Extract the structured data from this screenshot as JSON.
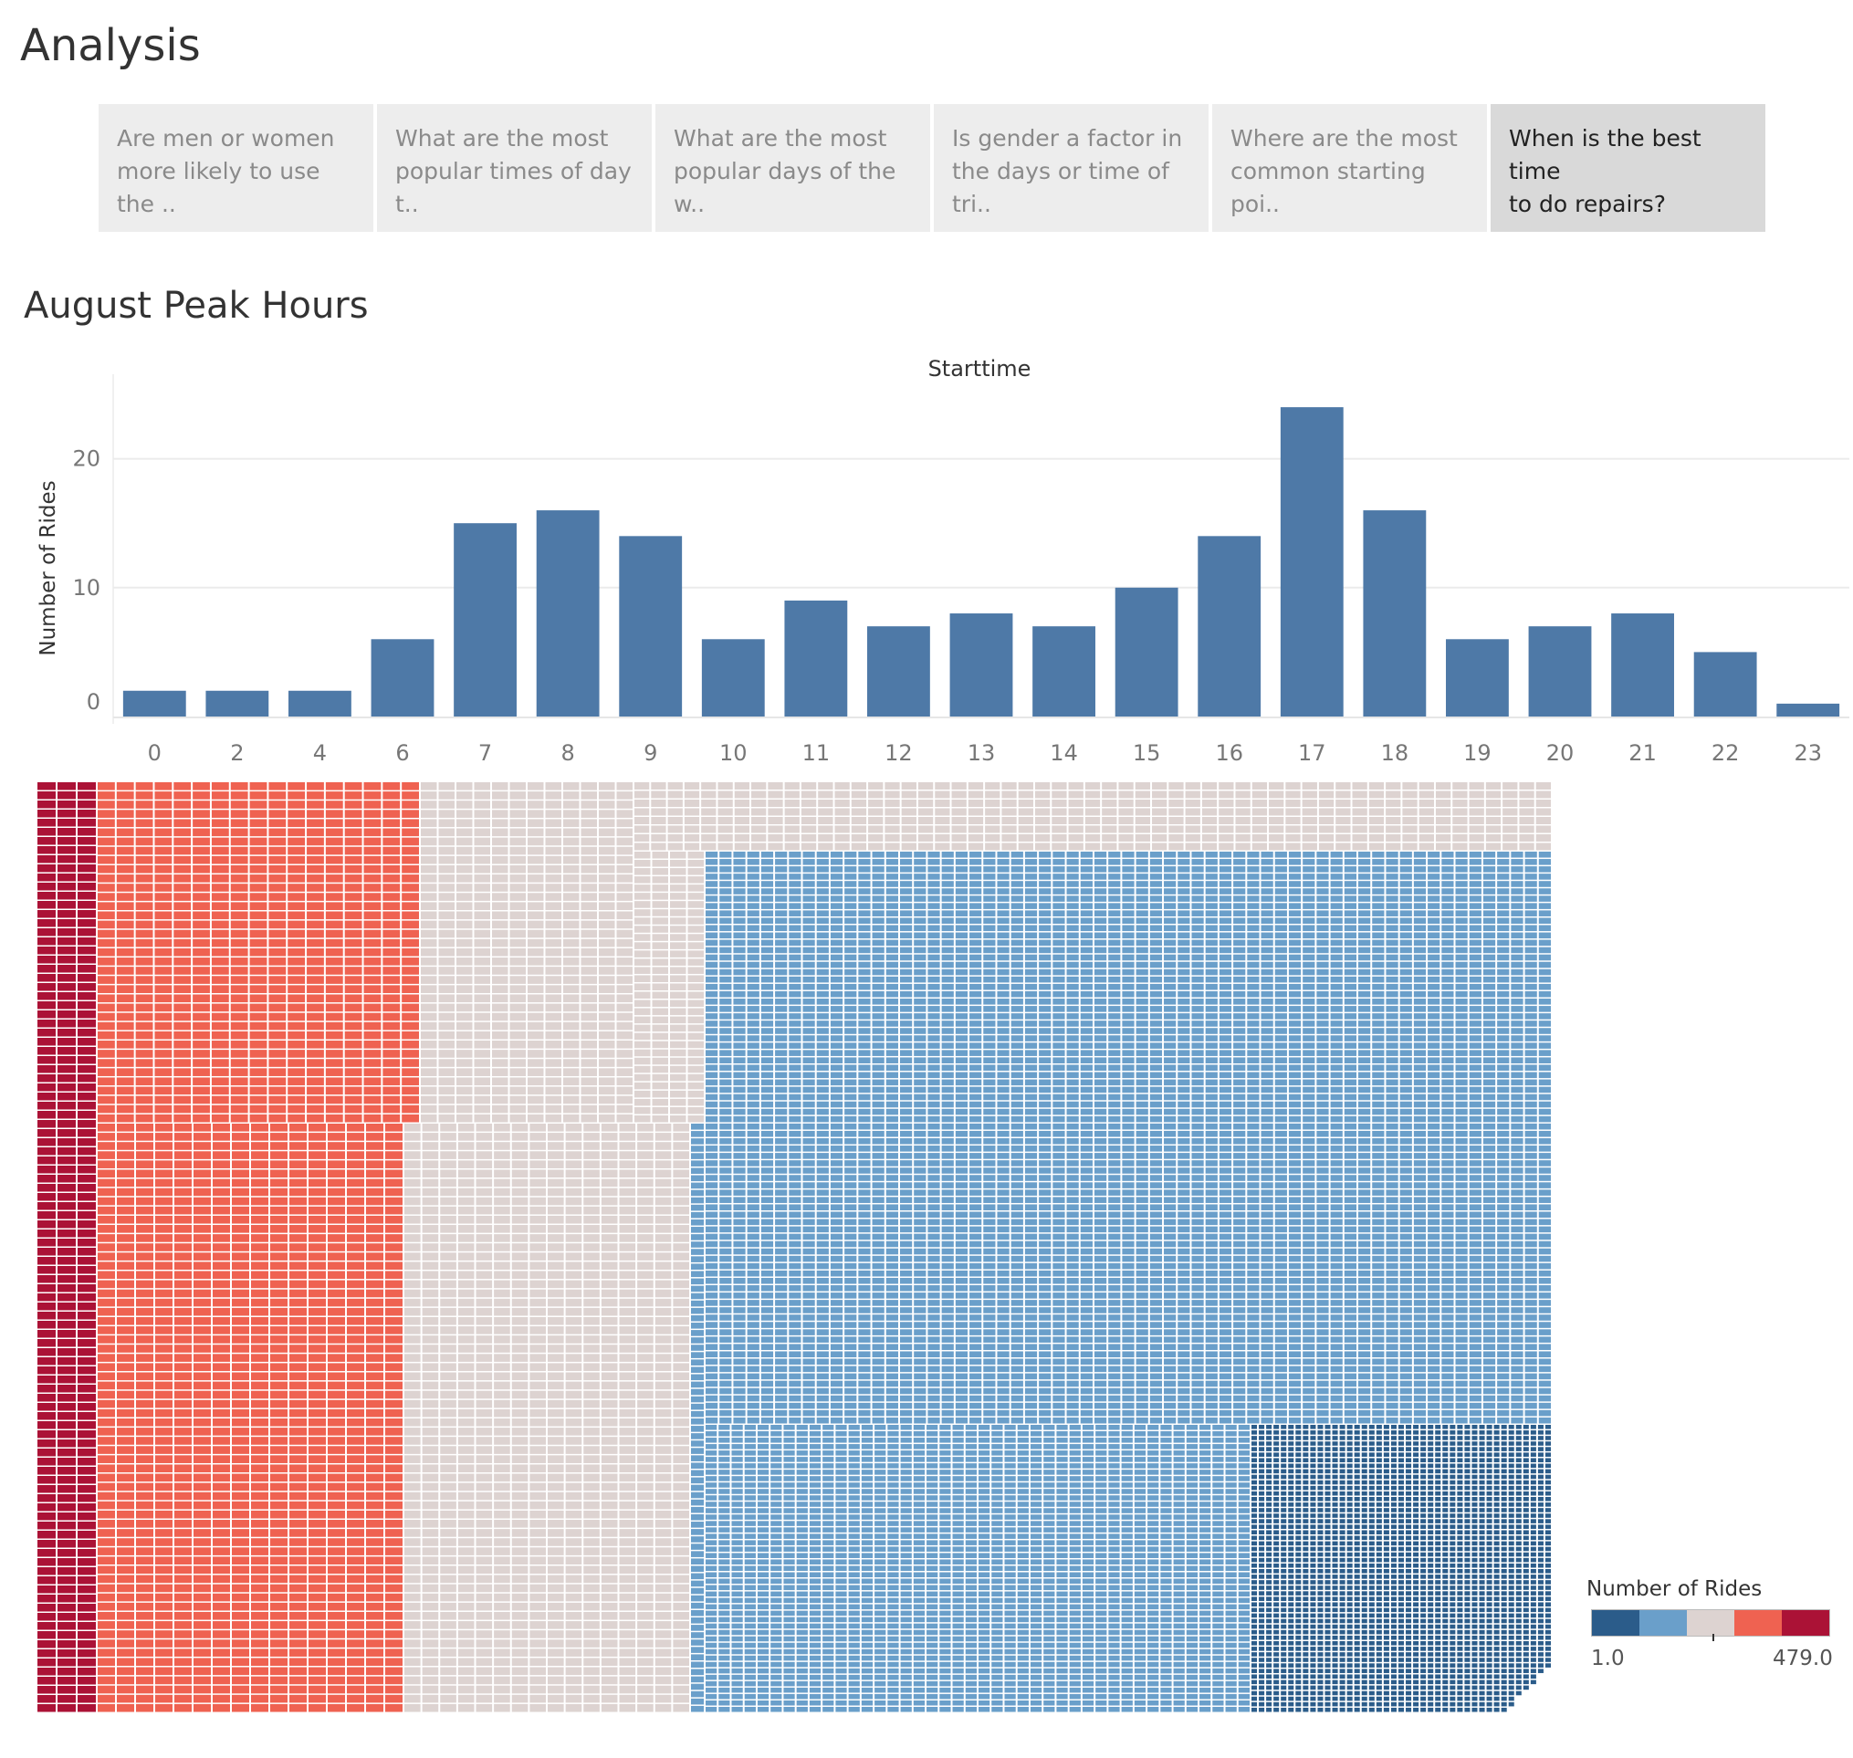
{
  "page": {
    "title": "Analysis"
  },
  "story_tabs": [
    {
      "label": "Are men or women more likely to use the ..",
      "line1": "Are men or women",
      "line2": "more likely to use the ..",
      "active": false
    },
    {
      "label": "What are the most popular times of day t..",
      "line1": "What are the most",
      "line2": "popular times of day t..",
      "active": false
    },
    {
      "label": "What are the most popular days of the w..",
      "line1": "What are the most",
      "line2": "popular days of the w..",
      "active": false
    },
    {
      "label": "Is gender a factor in the days or time of tri..",
      "line1": "Is gender a factor in",
      "line2": "the days or time of tri..",
      "active": false
    },
    {
      "label": "Where are the most common starting poi..",
      "line1": "Where are the most",
      "line2": "common starting poi..",
      "active": false
    },
    {
      "label": "When is the best time to do repairs?",
      "line1": "When is the best time",
      "line2": "to do repairs?",
      "active": true
    }
  ],
  "sheet": {
    "title": "August Peak Hours"
  },
  "colors": {
    "bar": "#4e79a7",
    "grid": "#ebebeb",
    "palette": [
      "#2b5c8a",
      "#6a9fca",
      "#ddd3d1",
      "#ef6251",
      "#ab1236"
    ]
  },
  "chart_data": [
    {
      "type": "bar",
      "title": "Starttime",
      "xlabel": "",
      "ylabel": "Number of Rides",
      "categories": [
        "0",
        "2",
        "4",
        "6",
        "7",
        "8",
        "9",
        "10",
        "11",
        "12",
        "13",
        "14",
        "15",
        "16",
        "17",
        "18",
        "19",
        "20",
        "21",
        "22",
        "23"
      ],
      "values": [
        2,
        2,
        2,
        6,
        15,
        16,
        14,
        6,
        9,
        7,
        8,
        7,
        10,
        14,
        24,
        16,
        6,
        7,
        8,
        5,
        1
      ],
      "yticks": [
        0,
        10,
        20
      ],
      "ylim": [
        0,
        25
      ],
      "grid": true
    },
    {
      "type": "heatmap",
      "title": "",
      "legend_title": "Number of Rides",
      "color_min": "1.0",
      "color_max": "479.0",
      "bands": [
        {
          "level": 5,
          "share": 0.04
        },
        {
          "level": 4,
          "share": 0.2
        },
        {
          "level": 3,
          "share": 0.19
        },
        {
          "level": 2,
          "share": 0.37
        },
        {
          "level": 1,
          "share": 0.2
        }
      ]
    }
  ]
}
